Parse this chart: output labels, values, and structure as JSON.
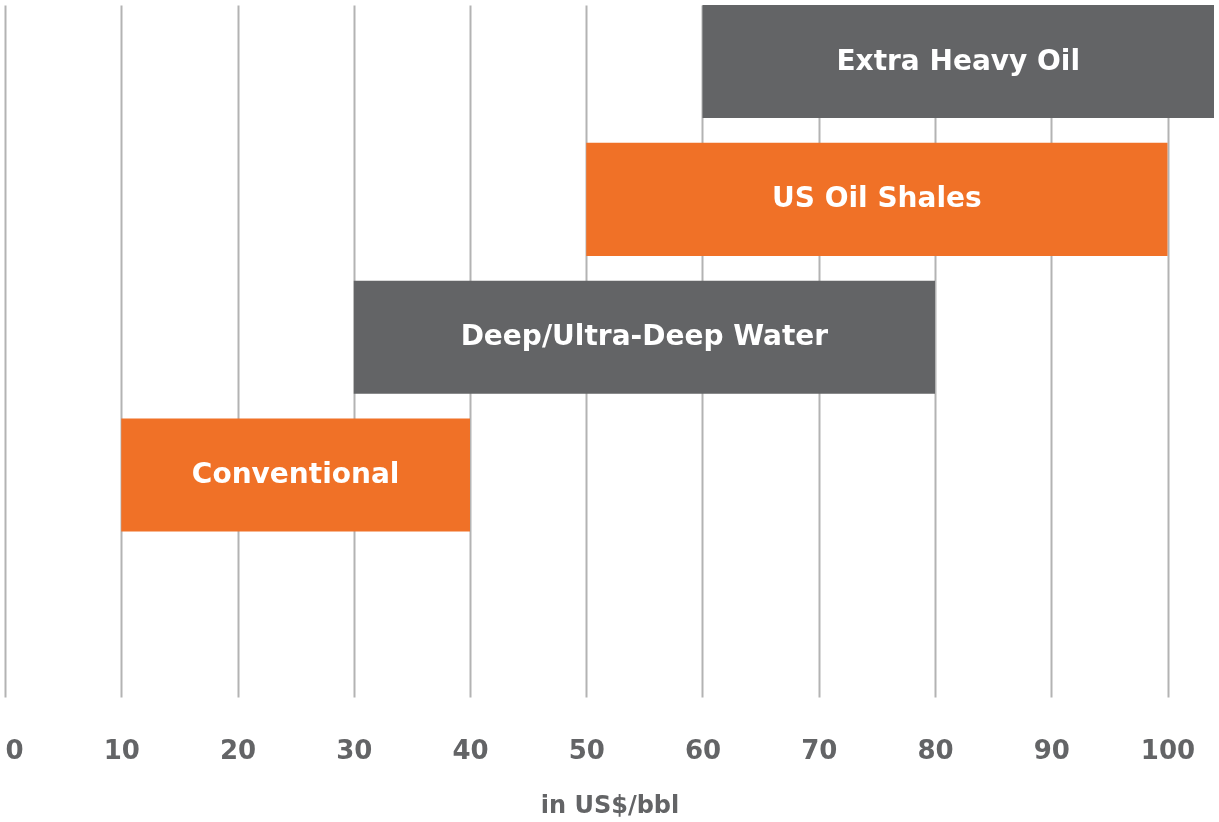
{
  "chart_data": {
    "type": "bar",
    "orientation": "horizontal",
    "xlabel": "in US$/bbl",
    "categories": [
      "Extra Heavy Oil",
      "US Oil Shales",
      "Deep/Ultra-Deep Water",
      "Conventional"
    ],
    "base": [
      60,
      50,
      30,
      10
    ],
    "values": [
      44,
      50,
      50,
      30
    ],
    "colors": [
      "#636466",
      "#f07127",
      "#636466",
      "#f07127"
    ],
    "xlim": [
      0,
      104
    ],
    "xticks": [
      0,
      10,
      20,
      30,
      40,
      50,
      60,
      70,
      80,
      90,
      100
    ],
    "grid": "x",
    "tick_labels": "x"
  }
}
